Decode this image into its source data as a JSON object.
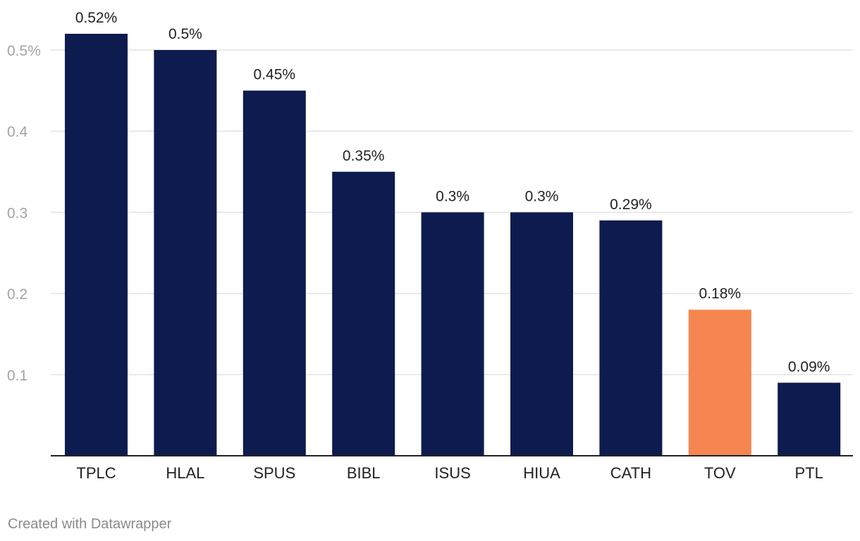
{
  "chart_data": {
    "type": "bar",
    "categories": [
      "TPLC",
      "HLAL",
      "SPUS",
      "BIBL",
      "ISUS",
      "HIUA",
      "CATH",
      "TOV",
      "PTL"
    ],
    "values": [
      0.52,
      0.5,
      0.45,
      0.35,
      0.3,
      0.3,
      0.29,
      0.18,
      0.09
    ],
    "value_labels": [
      "0.52%",
      "0.5%",
      "0.45%",
      "0.35%",
      "0.3%",
      "0.3%",
      "0.29%",
      "0.18%",
      "0.09%"
    ],
    "yticks": [
      0.1,
      0.2,
      0.3,
      0.4,
      0.5
    ],
    "ytick_labels": [
      "0.1",
      "0.2",
      "0.3",
      "0.4",
      "0.5%"
    ],
    "ylim": [
      0,
      0.5
    ],
    "grid": true,
    "colors": {
      "default": "#0d1b4f",
      "highlight": "#f5864f",
      "highlight_category": "TOV",
      "grid": "#e3e3e3",
      "baseline": "#222222"
    }
  },
  "footer": {
    "credit": "Created with Datawrapper"
  }
}
